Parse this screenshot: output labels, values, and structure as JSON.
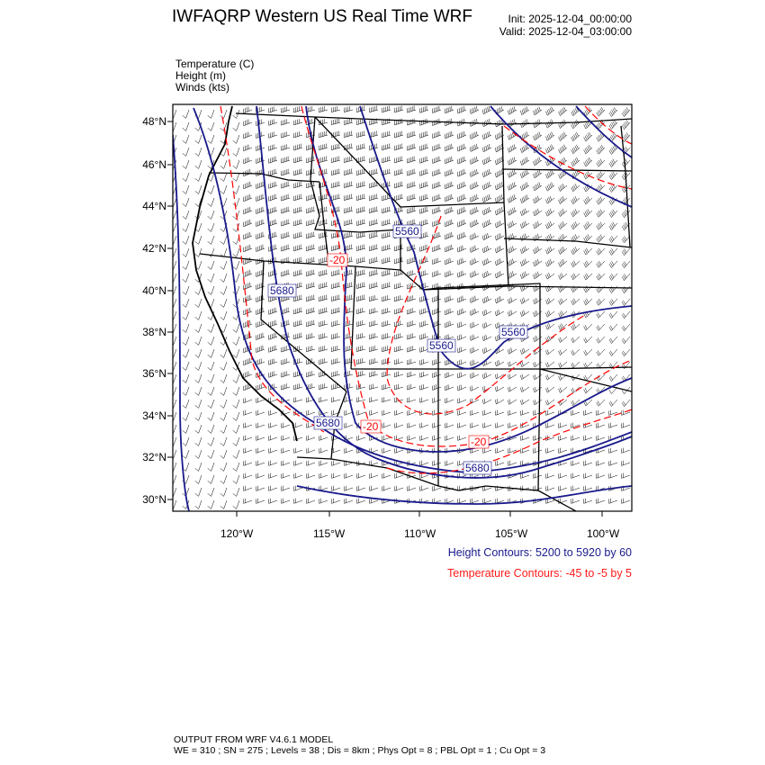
{
  "header": {
    "title": "IWFAQRP Western US Real Time WRF",
    "init": "Init: 2025-12-04_00:00:00",
    "valid": "Valid: 2025-12-04_03:00:00"
  },
  "fields": [
    "Temperature   (C)",
    "Height   (m)",
    "Winds   (kts)"
  ],
  "map": {
    "lat_ticks": [
      "48°N",
      "46°N",
      "44°N",
      "42°N",
      "40°N",
      "38°N",
      "36°N",
      "34°N",
      "32°N",
      "30°N"
    ],
    "lon_ticks": [
      "120°W",
      "115°W",
      "110°W",
      "105°W",
      "100°W"
    ],
    "height_labels": [
      "5560",
      "5680",
      "5560",
      "5560",
      "5680",
      "5680"
    ],
    "temp_labels": [
      "-20",
      "-20",
      "-20"
    ],
    "colors": {
      "height": "#1a1a8c",
      "temperature": "#ff0000",
      "borders": "#000000",
      "barbs": "#000000"
    }
  },
  "legend": {
    "height": "Height Contours: 5200 to 5920 by 60",
    "temperature": "Temperature Contours: -45 to -5 by 5"
  },
  "footer": {
    "line1": "OUTPUT FROM WRF V4.6.1 MODEL",
    "line2": "WE = 310 ; SN = 275 ; Levels = 38 ; Dis = 8km ; Phys Opt = 8 ; PBL Opt = 1 ; Cu Opt = 3"
  }
}
